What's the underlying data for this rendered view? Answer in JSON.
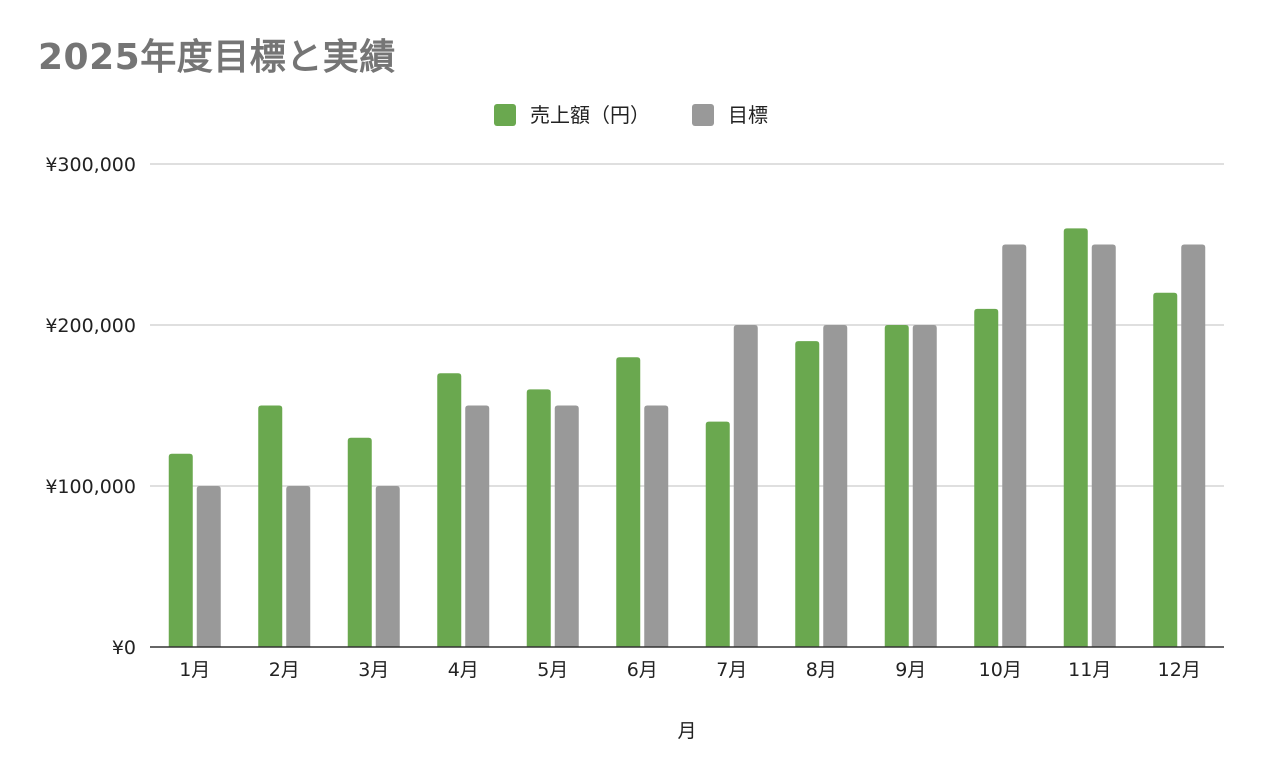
{
  "chart_data": {
    "type": "bar",
    "title": "2025年度目標と実績",
    "xlabel": "月",
    "ylabel": "",
    "categories": [
      "1月",
      "2月",
      "3月",
      "4月",
      "5月",
      "6月",
      "7月",
      "8月",
      "9月",
      "10月",
      "11月",
      "12月"
    ],
    "series": [
      {
        "name": "売上額（円）",
        "color": "#6aa84f",
        "values": [
          120000,
          150000,
          130000,
          170000,
          160000,
          180000,
          140000,
          190000,
          200000,
          210000,
          260000,
          220000
        ]
      },
      {
        "name": "目標",
        "color": "#999999",
        "values": [
          100000,
          100000,
          100000,
          150000,
          150000,
          150000,
          200000,
          200000,
          200000,
          250000,
          250000,
          250000
        ]
      }
    ],
    "ylim": [
      0,
      300000
    ],
    "yticks": [
      0,
      100000,
      200000,
      300000
    ],
    "ytick_labels": [
      "¥0",
      "¥100,000",
      "¥200,000",
      "¥300,000"
    ],
    "grid": true,
    "legend_position": "top-center"
  }
}
